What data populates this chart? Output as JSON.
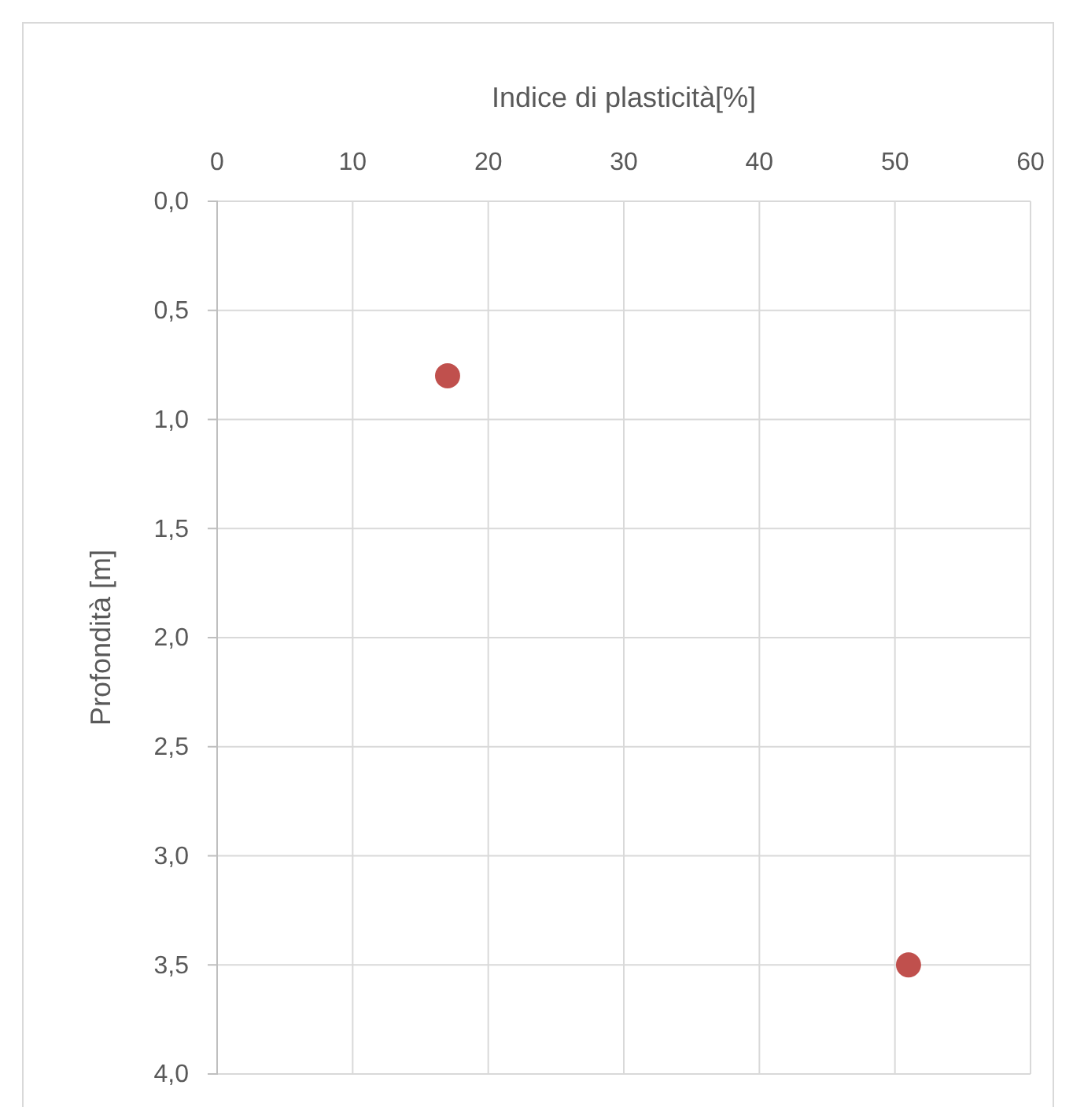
{
  "chart_data": {
    "type": "scatter",
    "xlabel": "Indice di plasticità[%]",
    "ylabel": "Profondità [m]",
    "x": [
      17,
      51
    ],
    "values": [
      0.8,
      3.5
    ],
    "color": "#c0504d",
    "marker": "circle",
    "xlim": [
      0,
      60
    ],
    "xticks": [
      0,
      10,
      20,
      30,
      40,
      50,
      60
    ],
    "ylim": [
      4,
      0
    ],
    "yticks": [
      {
        "value": 0,
        "label": "0,0"
      },
      {
        "value": 0.5,
        "label": "0,5"
      },
      {
        "value": 1,
        "label": "1,0"
      },
      {
        "value": 1.5,
        "label": "1,5"
      },
      {
        "value": 2,
        "label": "2,0"
      },
      {
        "value": 2.5,
        "label": "2,5"
      },
      {
        "value": 3,
        "label": "3,0"
      },
      {
        "value": 3.5,
        "label": "3,5"
      },
      {
        "value": 4,
        "label": "4,0"
      }
    ],
    "grid": true
  }
}
